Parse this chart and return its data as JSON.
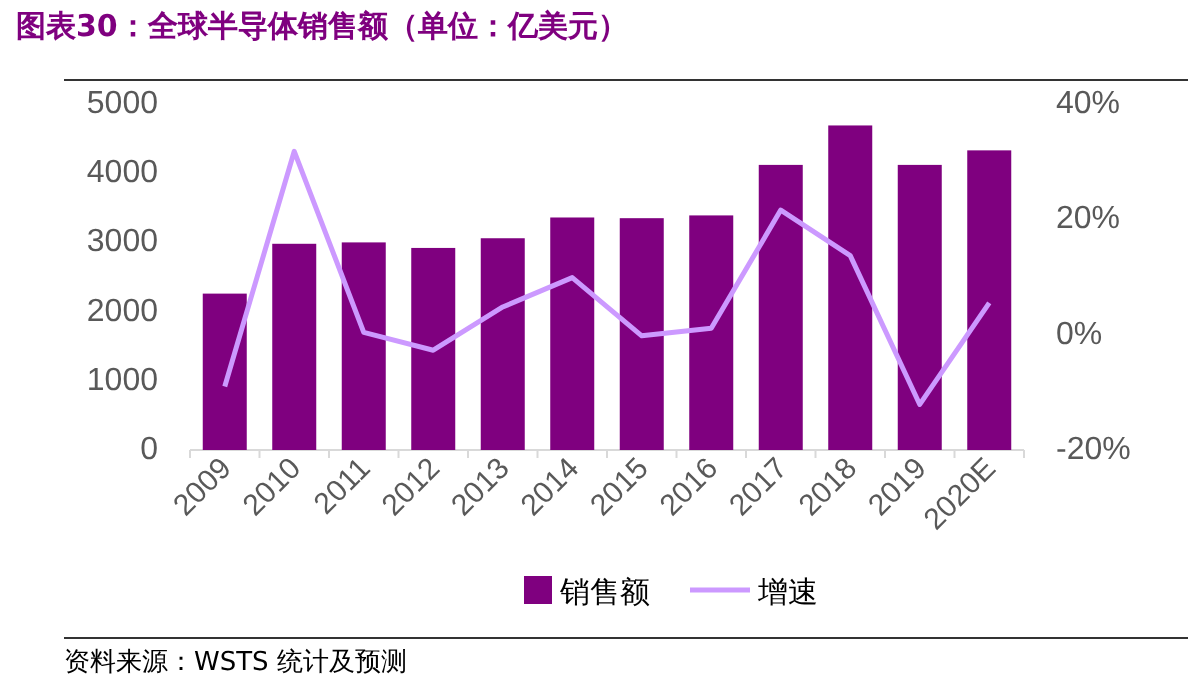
{
  "chart_data": {
    "type": "bar",
    "title": "图表30：全球半导体销售额（单位：亿美元）",
    "categories": [
      "2009",
      "2010",
      "2011",
      "2012",
      "2013",
      "2014",
      "2015",
      "2016",
      "2017",
      "2018",
      "2019",
      "2020E"
    ],
    "series": [
      {
        "name": "销售额",
        "color": "#7f007f",
        "values": [
          2260,
          2980,
          3000,
          2920,
          3060,
          3360,
          3350,
          3390,
          4120,
          4690,
          4120,
          4330
        ]
      },
      {
        "name": "增速",
        "type": "line",
        "axis": "y2",
        "color": "#cc99ff",
        "values": [
          -9.0,
          31.8,
          0.4,
          -2.7,
          4.8,
          9.9,
          -0.2,
          1.1,
          21.6,
          13.7,
          -12.1,
          5.5
        ]
      }
    ],
    "ylim": [
      0,
      5000
    ],
    "yticks": [
      0,
      1000,
      2000,
      3000,
      4000,
      5000
    ],
    "y2lim": [
      -20,
      40
    ],
    "y2ticks": [
      {
        "value": -20,
        "label": "-20%"
      },
      {
        "value": 0,
        "label": "0%"
      },
      {
        "value": 20,
        "label": "20%"
      },
      {
        "value": 40,
        "label": "40%"
      }
    ],
    "grid": false,
    "legend": "bottom",
    "marker": "none",
    "line_style": "solid",
    "annotations": [
      "资料来源：WSTS 统计及预测"
    ]
  }
}
